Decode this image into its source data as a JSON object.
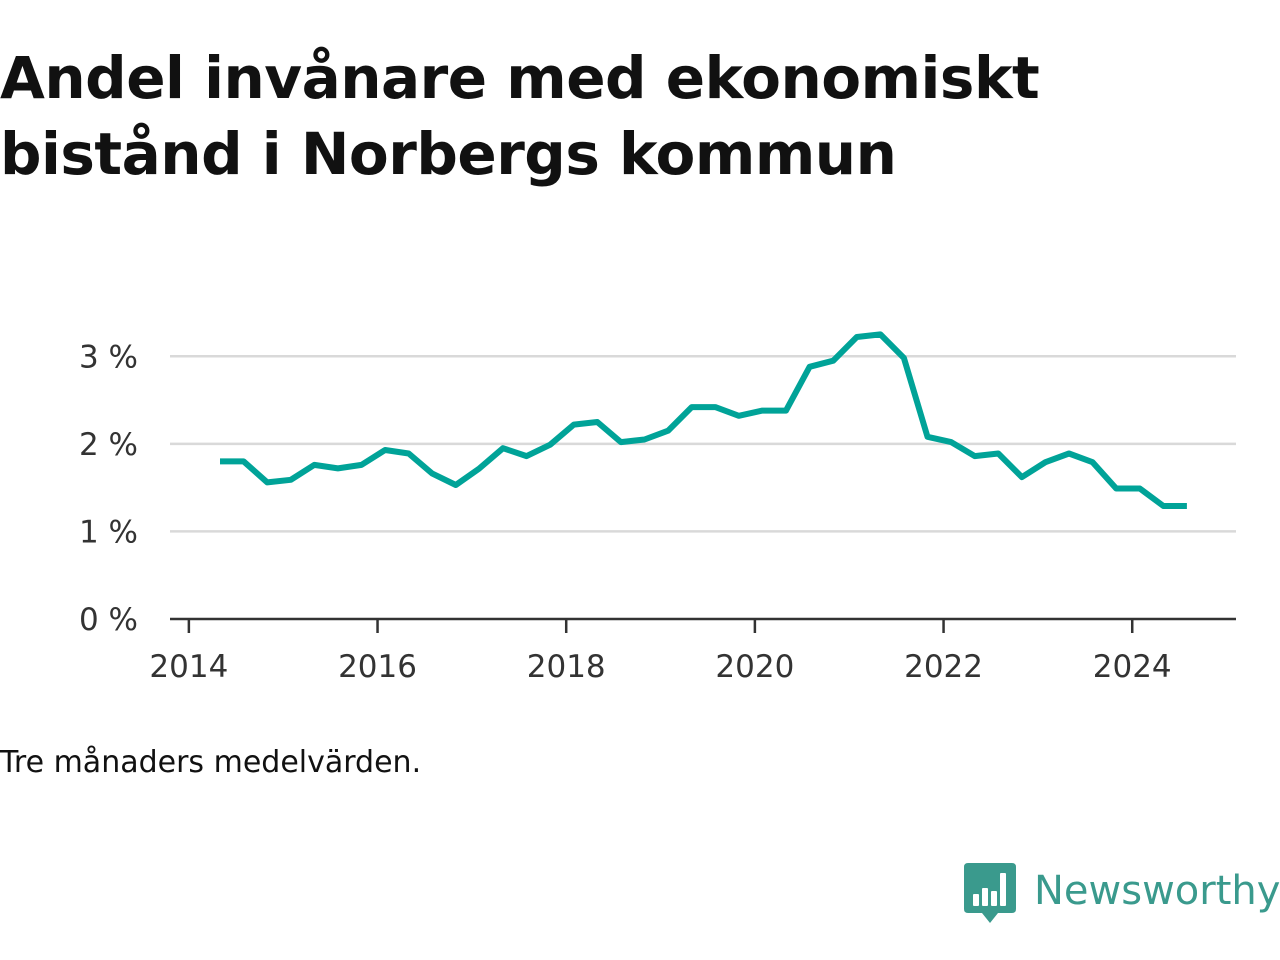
{
  "title": "Andel invånare med ekonomiskt bistånd i Norbergs kommun",
  "note": "Tre månaders medelvärden.",
  "brand": {
    "name": "Newsworthy",
    "icon": "newsworthy-logo-icon",
    "color": "#3a9a8d"
  },
  "colors": {
    "line": "#00a398",
    "grid": "#d9d9d9",
    "axis": "#333333"
  },
  "chart_data": {
    "type": "line",
    "title": "Andel invånare med ekonomiskt bistånd i Norbergs kommun",
    "xlabel": "",
    "ylabel": "",
    "xlim": [
      2013.8,
      2025.1
    ],
    "ylim": [
      0,
      3.3
    ],
    "x_ticks": [
      2014,
      2016,
      2018,
      2020,
      2022,
      2024
    ],
    "y_ticks": [
      0,
      1,
      2,
      3
    ],
    "y_tick_labels": [
      "0 %",
      "1 %",
      "2 %",
      "3 %"
    ],
    "grid": "horizontal",
    "legend": "none",
    "series": [
      {
        "x": [
          2014.33,
          2014.58,
          2014.83,
          2015.08,
          2015.33,
          2015.58,
          2015.83,
          2016.08,
          2016.33,
          2016.58,
          2016.83,
          2017.08,
          2017.33,
          2017.58,
          2017.83,
          2018.08,
          2018.33,
          2018.58,
          2018.83,
          2019.08,
          2019.33,
          2019.58,
          2019.83,
          2020.08,
          2020.33,
          2020.58,
          2020.83,
          2021.08,
          2021.33,
          2021.58,
          2021.83,
          2022.08,
          2022.33,
          2022.58,
          2022.83,
          2023.08,
          2023.33,
          2023.58,
          2023.83,
          2024.08,
          2024.33,
          2024.58
        ],
        "y": [
          1.8,
          1.8,
          1.56,
          1.59,
          1.76,
          1.72,
          1.76,
          1.93,
          1.89,
          1.66,
          1.53,
          1.72,
          1.95,
          1.86,
          1.99,
          2.22,
          2.25,
          2.02,
          2.05,
          2.15,
          2.42,
          2.42,
          2.32,
          2.38,
          2.38,
          2.88,
          2.95,
          3.22,
          3.25,
          2.98,
          2.08,
          2.02,
          1.86,
          1.89,
          1.62,
          1.79,
          1.89,
          1.79,
          1.49,
          1.49,
          1.29,
          1.29
        ]
      }
    ]
  }
}
